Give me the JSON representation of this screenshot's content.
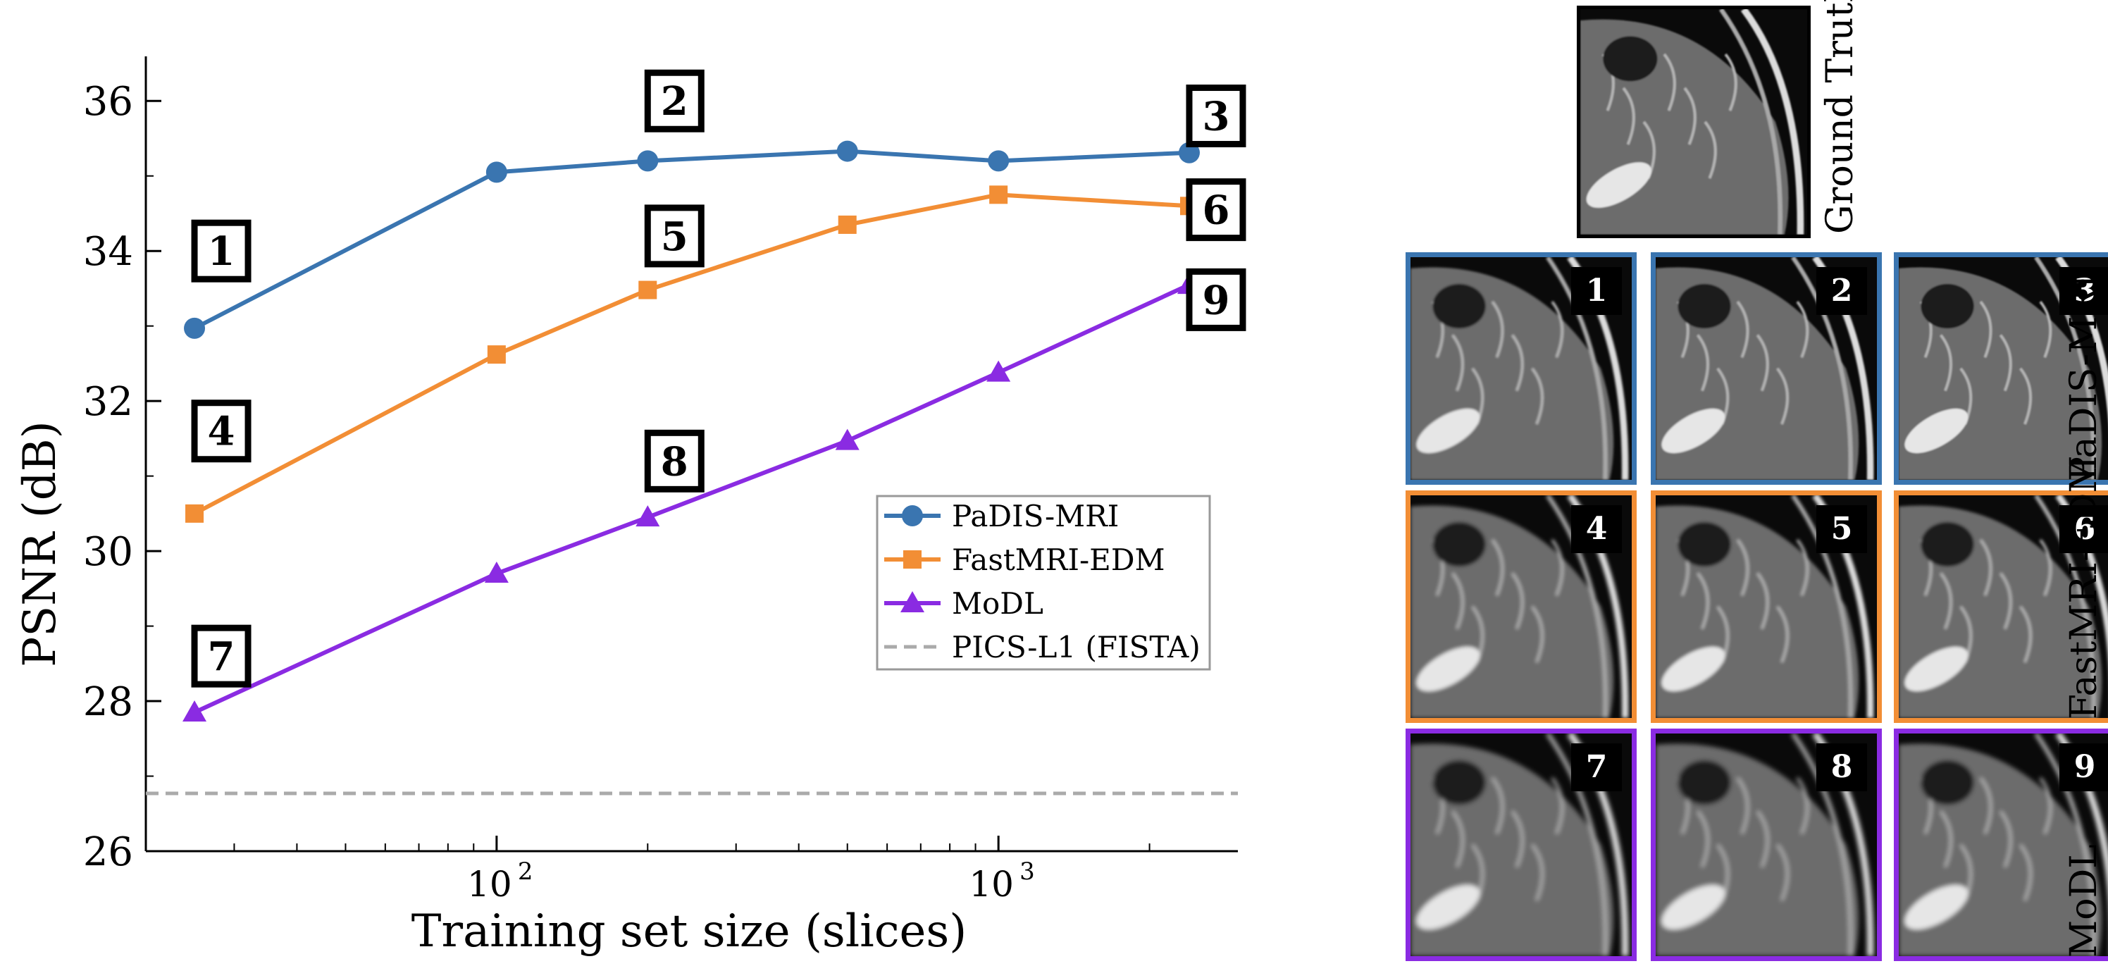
{
  "chart_data": {
    "type": "line",
    "xscale": "log",
    "xlabel": "Training set size (slices)",
    "ylabel": "PSNR (dB)",
    "xlim": [
      20,
      3000
    ],
    "ylim": [
      26,
      36.5
    ],
    "yticks": [
      26,
      28,
      30,
      32,
      34,
      36
    ],
    "xticks": [
      100,
      1000
    ],
    "xtick_labels": [
      {
        "base": "10",
        "exp": "2"
      },
      {
        "base": "10",
        "exp": "3"
      }
    ],
    "grid": false,
    "legend_position": "center-right",
    "series": [
      {
        "name": "PaDIS-MRI",
        "color": "#3a75b0",
        "marker": "circle",
        "x": [
          25,
          100,
          200,
          500,
          1000,
          2400
        ],
        "y": [
          32.97,
          35.05,
          35.2,
          35.33,
          35.2,
          35.31
        ]
      },
      {
        "name": "FastMRI-EDM",
        "color": "#f28e35",
        "marker": "square",
        "x": [
          25,
          100,
          200,
          500,
          1000,
          2400
        ],
        "y": [
          30.5,
          32.62,
          33.48,
          34.35,
          34.75,
          34.6
        ]
      },
      {
        "name": "MoDL",
        "color": "#8a2be2",
        "marker": "triangle",
        "x": [
          25,
          100,
          200,
          500,
          1000,
          2400
        ],
        "y": [
          27.85,
          29.7,
          30.45,
          31.47,
          32.38,
          33.55
        ]
      },
      {
        "name": "PICS-L1 (FISTA)",
        "color": "#aaaaaa",
        "marker": "none",
        "dashed": true,
        "x": [
          20,
          3000
        ],
        "y": [
          26.77,
          26.77
        ]
      }
    ],
    "annotations": [
      {
        "label": "1",
        "x": 25,
        "y": 34.0
      },
      {
        "label": "2",
        "x": 200,
        "y": 36.0
      },
      {
        "label": "3",
        "x": 2400,
        "y": 35.8
      },
      {
        "label": "4",
        "x": 25,
        "y": 31.6
      },
      {
        "label": "5",
        "x": 200,
        "y": 34.2
      },
      {
        "label": "6",
        "x": 2400,
        "y": 34.55
      },
      {
        "label": "7",
        "x": 25,
        "y": 28.6
      },
      {
        "label": "8",
        "x": 200,
        "y": 31.2
      },
      {
        "label": "9",
        "x": 2400,
        "y": 33.35
      }
    ]
  },
  "panel": {
    "ground_truth_label": "Ground Truth",
    "rows": [
      {
        "label": "PaDIS-MRI",
        "color": "#3a75b0",
        "tiles": [
          "1",
          "2",
          "3"
        ]
      },
      {
        "label": "FastMRI-EDM",
        "color": "#f28e35",
        "tiles": [
          "4",
          "5",
          "6"
        ]
      },
      {
        "label": "MoDL",
        "color": "#8a2be2",
        "tiles": [
          "7",
          "8",
          "9"
        ]
      }
    ]
  }
}
